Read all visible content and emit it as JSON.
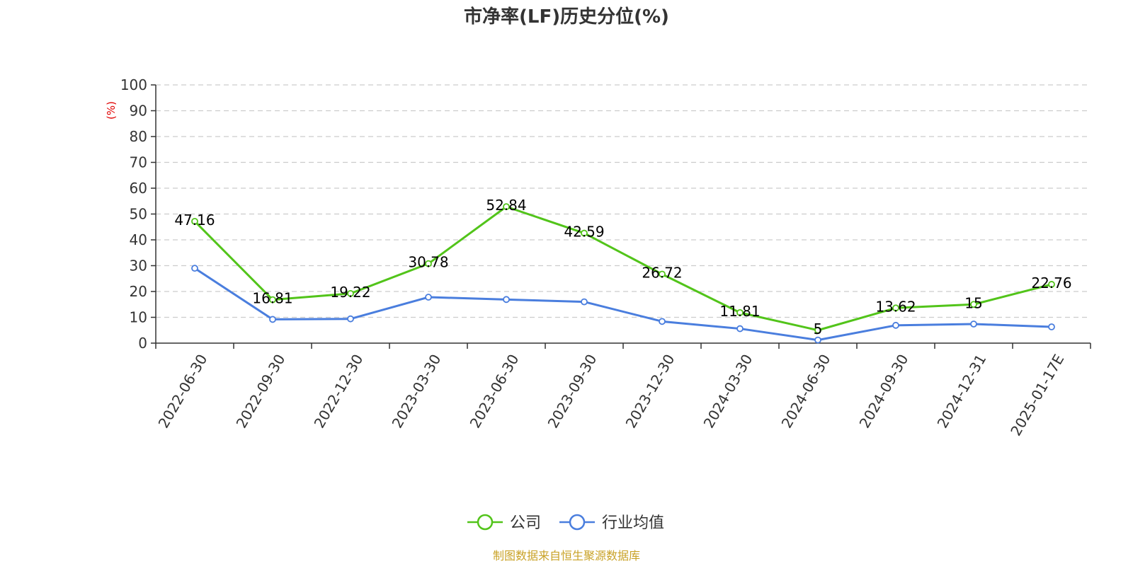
{
  "chart_data": {
    "type": "line",
    "title": "市净率(LF)历史分位(%)",
    "ylabel": "(%)",
    "xlabel": "",
    "ylim": [
      0,
      100
    ],
    "yticks": [
      0,
      10,
      20,
      30,
      40,
      50,
      60,
      70,
      80,
      90,
      100
    ],
    "grid": true,
    "legend_position": "bottom-center",
    "categories": [
      "2022-06-30",
      "2022-09-30",
      "2022-12-30",
      "2023-03-30",
      "2023-06-30",
      "2023-09-30",
      "2023-12-30",
      "2024-03-30",
      "2024-06-30",
      "2024-09-30",
      "2024-12-31",
      "2025-01-17E"
    ],
    "series": [
      {
        "name": "公司",
        "color": "#52c41a",
        "values": [
          47.16,
          16.81,
          19.22,
          30.78,
          52.84,
          42.59,
          26.72,
          11.81,
          5,
          13.62,
          15,
          22.76
        ],
        "labels": [
          "47.16",
          "16.81",
          "19.22",
          "30.78",
          "52.84",
          "42.59",
          "26.72",
          "11.81",
          "5",
          "13.62",
          "15",
          "22.76"
        ]
      },
      {
        "name": "行业均值",
        "color": "#4a7ede",
        "values": [
          29,
          9.2,
          9.4,
          17.8,
          16.9,
          16.0,
          8.4,
          5.6,
          1.2,
          6.9,
          7.4,
          6.3
        ]
      }
    ]
  },
  "source_note": "制图数据来自恒生聚源数据库",
  "colors": {
    "ylabel": "#e00000",
    "source": "#c9a227",
    "grid": "#cccccc",
    "axis": "#333333"
  }
}
